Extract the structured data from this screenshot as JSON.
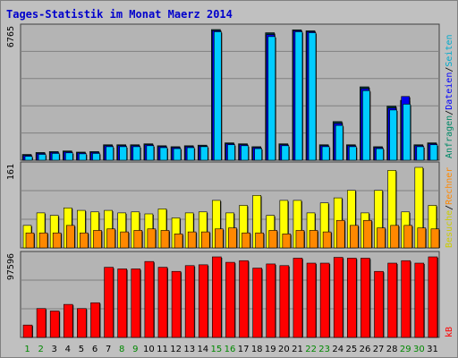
{
  "title": "Tages-Statistik im Monat Maerz 2014",
  "colors": {
    "background": "#c0c0c0",
    "plot_area": "#b4b4b4",
    "title": "#0000cc",
    "anfragen": "#008866",
    "dateien": "#0000ff",
    "seiten": "#00aacc",
    "besuche": "#cccc00",
    "rechner": "#ff8800",
    "kb": "#ff0000",
    "weekend_label": "#008800",
    "weekday_label": "#000000"
  },
  "chart_data": [
    {
      "type": "bar",
      "panel": "top",
      "ymax_label": "6765",
      "ylim": [
        0,
        6765
      ],
      "categories": [
        "1",
        "2",
        "3",
        "4",
        "5",
        "6",
        "7",
        "8",
        "9",
        "10",
        "11",
        "12",
        "13",
        "14",
        "15",
        "16",
        "17",
        "18",
        "19",
        "20",
        "21",
        "22",
        "23",
        "24",
        "25",
        "26",
        "27",
        "28",
        "29",
        "30",
        "31"
      ],
      "series": [
        {
          "name": "Anfragen",
          "values": [
            300,
            400,
            450,
            480,
            420,
            450,
            800,
            800,
            800,
            850,
            750,
            700,
            750,
            780,
            6765,
            900,
            850,
            700,
            6600,
            850,
            6750,
            6700,
            800,
            2000,
            800,
            3800,
            700,
            2800,
            3100,
            800,
            900
          ]
        },
        {
          "name": "Dateien",
          "values": [
            250,
            350,
            400,
            430,
            380,
            400,
            750,
            750,
            750,
            800,
            700,
            650,
            700,
            730,
            6700,
            850,
            800,
            650,
            6500,
            800,
            6700,
            6650,
            750,
            1900,
            750,
            3700,
            650,
            2700,
            3300,
            750,
            850
          ]
        },
        {
          "name": "Seiten",
          "values": [
            200,
            300,
            350,
            380,
            330,
            350,
            700,
            700,
            700,
            750,
            650,
            600,
            650,
            700,
            6650,
            800,
            750,
            600,
            6400,
            750,
            6650,
            6600,
            700,
            1800,
            700,
            3600,
            600,
            2600,
            2900,
            700,
            800
          ]
        }
      ],
      "legend": [
        "Anfragen",
        "/",
        "Dateien",
        "/",
        "Seiten"
      ]
    },
    {
      "type": "bar",
      "panel": "middle",
      "ymax_label": "161",
      "ylim": [
        0,
        161
      ],
      "categories": [
        "1",
        "2",
        "3",
        "4",
        "5",
        "6",
        "7",
        "8",
        "9",
        "10",
        "11",
        "12",
        "13",
        "14",
        "15",
        "16",
        "17",
        "18",
        "19",
        "20",
        "21",
        "22",
        "23",
        "24",
        "25",
        "26",
        "27",
        "28",
        "29",
        "30",
        "31"
      ],
      "series": [
        {
          "name": "Besuche",
          "values": [
            45,
            70,
            65,
            80,
            75,
            72,
            75,
            70,
            72,
            68,
            78,
            60,
            70,
            72,
            95,
            70,
            85,
            105,
            65,
            95,
            95,
            70,
            90,
            100,
            115,
            70,
            115,
            155,
            72,
            161,
            85
          ]
        },
        {
          "name": "Rechner",
          "values": [
            30,
            30,
            30,
            45,
            30,
            35,
            38,
            32,
            35,
            38,
            35,
            28,
            32,
            32,
            38,
            40,
            30,
            30,
            35,
            28,
            35,
            35,
            32,
            55,
            45,
            55,
            40,
            45,
            45,
            40,
            38
          ]
        }
      ],
      "legend": [
        "Besuche",
        "/",
        "Rechner"
      ]
    },
    {
      "type": "bar",
      "panel": "bottom",
      "ymax_label": "97596",
      "ylim": [
        0,
        97596
      ],
      "categories": [
        "1",
        "2",
        "3",
        "4",
        "5",
        "6",
        "7",
        "8",
        "9",
        "10",
        "11",
        "12",
        "13",
        "14",
        "15",
        "16",
        "17",
        "18",
        "19",
        "20",
        "21",
        "22",
        "23",
        "24",
        "25",
        "26",
        "27",
        "28",
        "29",
        "30",
        "31"
      ],
      "series": [
        {
          "name": "kB",
          "values": [
            15000,
            35000,
            32000,
            40000,
            35000,
            42000,
            85000,
            83000,
            83000,
            92000,
            85000,
            80000,
            87000,
            88000,
            97596,
            91000,
            93000,
            84000,
            89000,
            87000,
            96000,
            90000,
            90000,
            97000,
            96000,
            96000,
            80000,
            90000,
            93000,
            90000,
            97596
          ]
        }
      ],
      "legend": [
        "kB"
      ]
    }
  ],
  "weekend_days": [
    "1",
    "2",
    "8",
    "9",
    "15",
    "16",
    "22",
    "23",
    "29",
    "30"
  ]
}
